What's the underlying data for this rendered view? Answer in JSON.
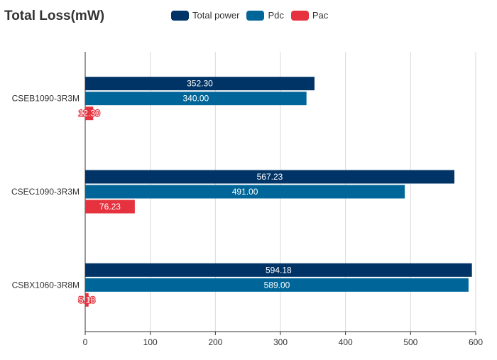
{
  "chart_data": {
    "type": "bar",
    "orientation": "horizontal",
    "title": "Total Loss(mW)",
    "categories": [
      "CSEB1090-3R3M",
      "CSEC1090-3R3M",
      "CSBX1060-3R8M"
    ],
    "series": [
      {
        "name": "Total power",
        "color": "#003366",
        "values": [
          352.3,
          567.23,
          594.18
        ],
        "labels": [
          "352.30",
          "567.23",
          "594.18"
        ]
      },
      {
        "name": "Pdc",
        "color": "#006699",
        "values": [
          340.0,
          491.0,
          589.0
        ],
        "labels": [
          "340.00",
          "491.00",
          "589.00"
        ]
      },
      {
        "name": "Pac",
        "color": "#e5323e",
        "values": [
          12.3,
          76.23,
          5.18
        ],
        "labels": [
          "12.30",
          "76.23",
          "5.18"
        ]
      }
    ],
    "x_ticks": [
      "0",
      "100",
      "200",
      "300",
      "400",
      "500",
      "600"
    ],
    "xlim": [
      0,
      600
    ],
    "grid": "vertical",
    "legend_position": "top"
  }
}
